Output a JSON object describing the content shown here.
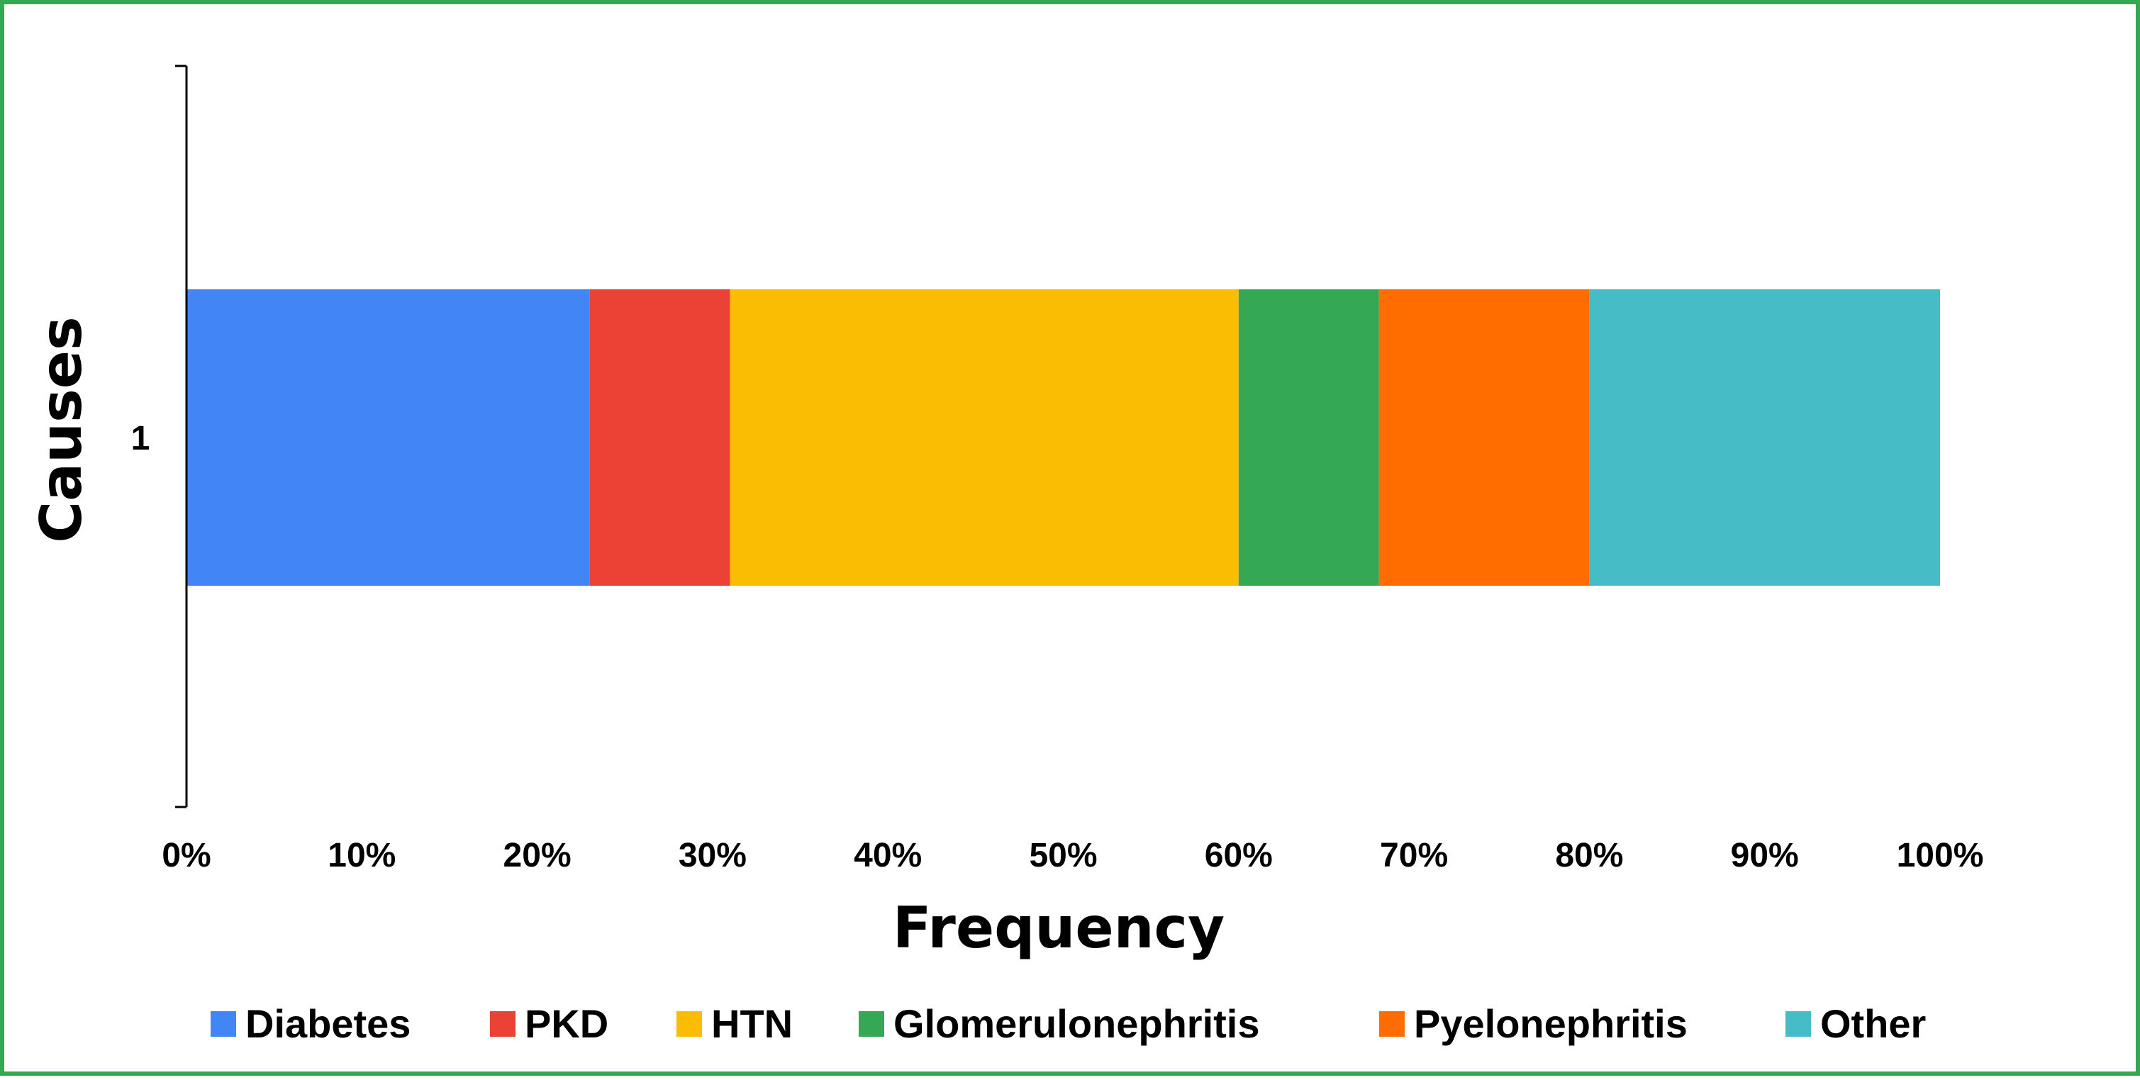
{
  "chart_data": {
    "type": "bar",
    "orientation": "horizontal",
    "stacked": "percent",
    "categories": [
      "1"
    ],
    "series": [
      {
        "name": "Diabetes",
        "values": [
          23
        ],
        "color": "#4285f4"
      },
      {
        "name": "PKD",
        "values": [
          8
        ],
        "color": "#ea4335"
      },
      {
        "name": "HTN",
        "values": [
          29
        ],
        "color": "#fbbc04"
      },
      {
        "name": "Glomerulonephritis",
        "values": [
          8
        ],
        "color": "#34a853"
      },
      {
        "name": "Pyelonephritis",
        "values": [
          12
        ],
        "color": "#ff6d01"
      },
      {
        "name": "Other",
        "values": [
          20
        ],
        "color": "#46bdc6"
      }
    ],
    "xlabel": "Frequency",
    "ylabel": "Causes",
    "xlim": [
      0,
      100
    ],
    "xticks": [
      "0%",
      "10%",
      "20%",
      "30%",
      "40%",
      "50%",
      "60%",
      "70%",
      "80%",
      "90%",
      "100%"
    ],
    "grid": false,
    "legend_position": "bottom",
    "border_color": "#34a853"
  }
}
